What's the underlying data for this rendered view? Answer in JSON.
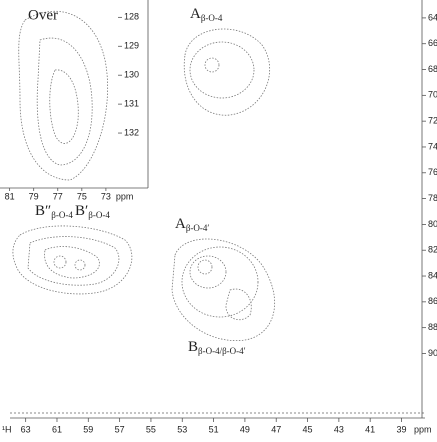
{
  "overlay_label": "Over",
  "inset": {
    "yticks": [
      128,
      129,
      130,
      131,
      132
    ],
    "ylim": [
      127.4,
      133.9
    ],
    "xticks": [
      81,
      79,
      77,
      75,
      73
    ],
    "xlim": [
      81.8,
      69.5
    ],
    "x_unit": "ppm"
  },
  "main": {
    "x_label": "¹H",
    "xticks": [
      63,
      61,
      59,
      57,
      55,
      53,
      51,
      49,
      47,
      45,
      43,
      41,
      39
    ],
    "xlim": [
      64,
      37.5
    ],
    "x_unit": "ppm",
    "yticks": [
      64,
      66,
      68,
      70,
      72,
      74,
      76,
      78,
      80,
      82,
      84,
      86,
      88,
      90
    ],
    "ylim": [
      63,
      95
    ]
  },
  "labels": [
    {
      "main": "A",
      "sub": "β-O-4"
    },
    {
      "main": "B″",
      "sub": "β-O-4"
    },
    {
      "main": "B′",
      "sub": "β-O-4"
    },
    {
      "main": "A",
      "sub": "β-O-4′"
    },
    {
      "main": "B",
      "sub": "β-O-4/β-O-4′"
    }
  ]
}
